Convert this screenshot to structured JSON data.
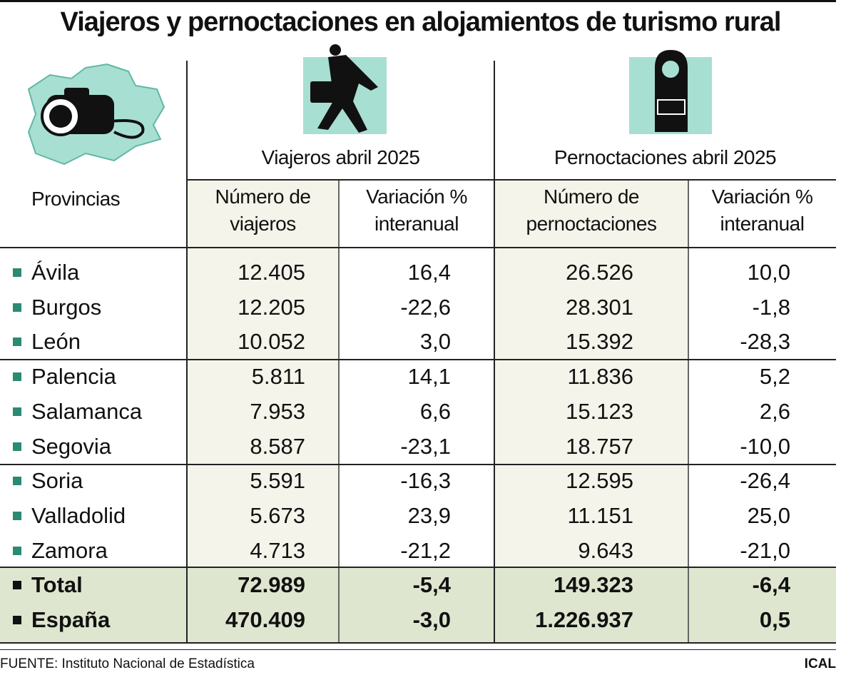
{
  "header": {
    "title": "Viajeros y pernoctaciones en alojamientos de turismo rural"
  },
  "table": {
    "groups": [
      "Viajeros abril 2025",
      "Pernoctaciones abril 2025"
    ],
    "columns": [
      [
        "Provincias"
      ],
      [
        "Número de",
        "viajeros"
      ],
      [
        "Variación %",
        "interanual"
      ],
      [
        "Número de",
        "pernoctaciones"
      ],
      [
        "Variación %",
        "interanual"
      ]
    ],
    "rows": [
      [
        "Ávila",
        "12.405",
        "16,4",
        "26.526",
        "10,0"
      ],
      [
        "Burgos",
        "12.205",
        "-22,6",
        "28.301",
        "-1,8"
      ],
      [
        "León",
        "10.052",
        "3,0",
        "15.392",
        "-28,3"
      ],
      [
        "Palencia",
        "5.811",
        "14,1",
        "11.836",
        "5,2"
      ],
      [
        "Salamanca",
        "7.953",
        "6,6",
        "15.123",
        "2,6"
      ],
      [
        "Segovia",
        "8.587",
        "-23,1",
        "18.757",
        "-10,0"
      ],
      [
        "Soria",
        "5.591",
        "-16,3",
        "12.595",
        "-26,4"
      ],
      [
        "Valladolid",
        "5.673",
        "23,9",
        "11.151",
        "25,0"
      ],
      [
        "Zamora",
        "4.713",
        "-21,2",
        "9.643",
        "-21,0"
      ]
    ],
    "totals": [
      [
        "Total",
        "72.989",
        "-5,4",
        "149.323",
        "-6,4"
      ],
      [
        "España",
        "470.409",
        "-3,0",
        "1.226.937",
        "0,5"
      ]
    ]
  },
  "footer": {
    "source": "FUENTE: Instituto Nacional de Estadística",
    "credit": "ICAL"
  }
}
